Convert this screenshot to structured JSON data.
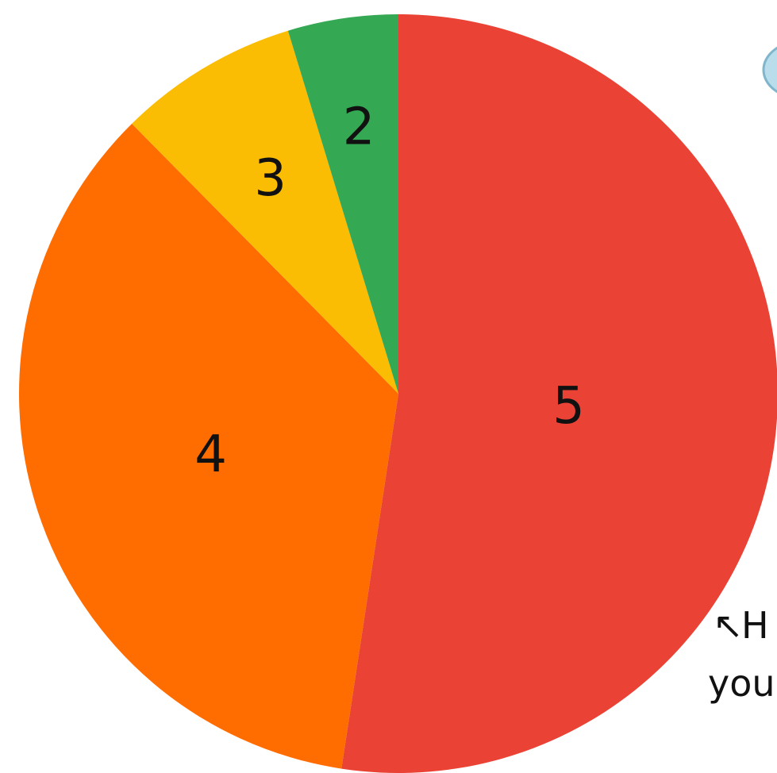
{
  "chart_data": {
    "type": "pie",
    "start": "top",
    "direction": "clockwise",
    "slices": [
      {
        "label": "5",
        "value": 52.4,
        "color": "#EA4335"
      },
      {
        "label": "4",
        "value": 35.2,
        "color": "#FF6D01"
      },
      {
        "label": "3",
        "value": 7.7,
        "color": "#FBBC04"
      },
      {
        "label": "2",
        "value": 4.7,
        "color": "#34A853"
      }
    ]
  },
  "annotation": {
    "arrow": "↖",
    "line1": "H",
    "line2": "you"
  },
  "bubble": {
    "fill": "#B9DDEA",
    "stroke": "#7FB6CC"
  }
}
